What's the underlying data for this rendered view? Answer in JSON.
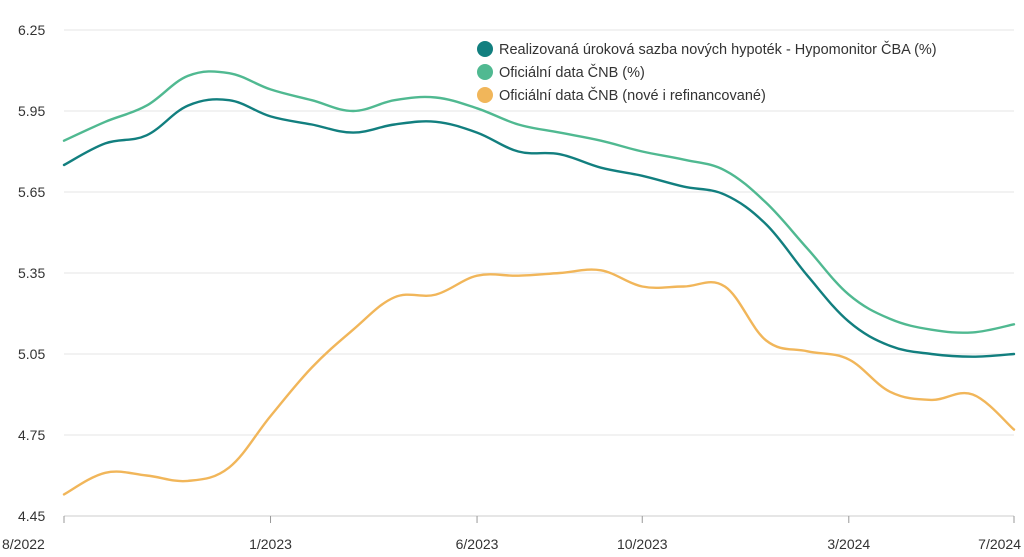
{
  "chart_data": {
    "type": "line",
    "title": "",
    "xlabel": "",
    "ylabel": "",
    "x": [
      "8/2022",
      "9/2022",
      "10/2022",
      "11/2022",
      "12/2022",
      "1/2023",
      "2/2023",
      "3/2023",
      "4/2023",
      "5/2023",
      "6/2023",
      "7/2023",
      "8/2023",
      "9/2023",
      "10/2023",
      "11/2023",
      "12/2023",
      "1/2024",
      "2/2024",
      "3/2024",
      "4/2024",
      "5/2024",
      "6/2024",
      "7/2024"
    ],
    "x_tick_labels": [
      "8/2022",
      "1/2023",
      "6/2023",
      "10/2023",
      "3/2024",
      "7/2024"
    ],
    "x_tick_index": [
      0,
      5,
      10,
      14,
      19,
      23
    ],
    "y_ticks": [
      "4.45",
      "4.75",
      "5.05",
      "5.35",
      "5.65",
      "5.95",
      "6.25"
    ],
    "ylim": [
      4.45,
      6.25
    ],
    "grid": true,
    "legend_position": "top-right",
    "series": [
      {
        "name": "Realizovaná úroková sazba nových hypoték - Hypomonitor ČBA (%)",
        "color": "#127f7f",
        "values": [
          5.75,
          5.83,
          5.86,
          5.97,
          5.99,
          5.93,
          5.9,
          5.87,
          5.9,
          5.91,
          5.87,
          5.8,
          5.79,
          5.74,
          5.71,
          5.67,
          5.64,
          5.53,
          5.34,
          5.17,
          5.08,
          5.05,
          5.04,
          5.05
        ]
      },
      {
        "name": "Oficiální data ČNB (%)",
        "color": "#50b991",
        "values": [
          5.84,
          5.91,
          5.97,
          6.08,
          6.09,
          6.03,
          5.99,
          5.95,
          5.99,
          6.0,
          5.96,
          5.9,
          5.87,
          5.84,
          5.8,
          5.77,
          5.73,
          5.61,
          5.44,
          5.27,
          5.18,
          5.14,
          5.13,
          5.16
        ]
      },
      {
        "name": "Oficiální data ČNB (nové i refinancované)",
        "color": "#f1b65a",
        "values": [
          4.53,
          4.61,
          4.6,
          4.58,
          4.63,
          4.82,
          5.0,
          5.14,
          5.26,
          5.27,
          5.34,
          5.34,
          5.35,
          5.36,
          5.3,
          5.3,
          5.3,
          5.1,
          5.06,
          5.03,
          4.91,
          4.88,
          4.9,
          4.77
        ]
      }
    ]
  }
}
